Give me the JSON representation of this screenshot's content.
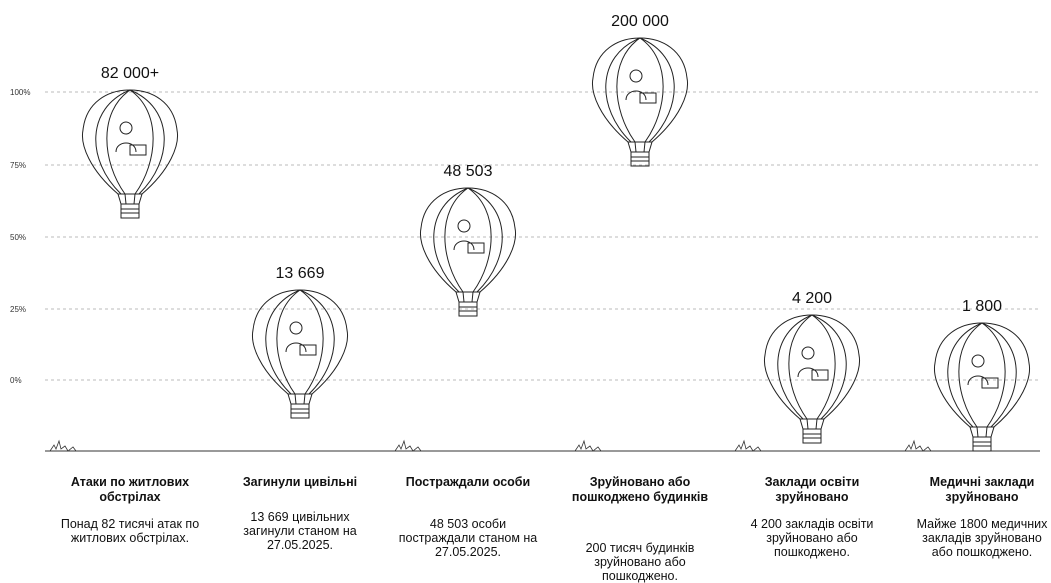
{
  "axis": {
    "ticks": [
      "100%",
      "75%",
      "50%",
      "25%",
      "0%"
    ]
  },
  "items": [
    {
      "value": "82 000+",
      "title": "Атаки по житлових обстрілах",
      "description": "Понад 82 тисячі атак по житлових обстрілах."
    },
    {
      "value": "13 669",
      "title": "Загинули цивільні",
      "description": "13 669 цивільних загинули станом на 27.05.2025."
    },
    {
      "value": "48 503",
      "title": "Постраждали особи",
      "description": "48 503 особи постраждали станом на 27.05.2025."
    },
    {
      "value": "200 000",
      "title": "Зруйновано або пошкоджено будинків",
      "description": "200 тисяч будинків зруйновано або пошкоджено."
    },
    {
      "value": "4 200",
      "title": "Заклади освіти зруйновано",
      "description": "4 200 закладів освіти зруйновано або пошкоджено."
    },
    {
      "value": "1 800",
      "title": "Медичні заклади зруйновано",
      "description": "Майже 1800 медичних закладів зруйновано або пошкоджено."
    }
  ]
}
